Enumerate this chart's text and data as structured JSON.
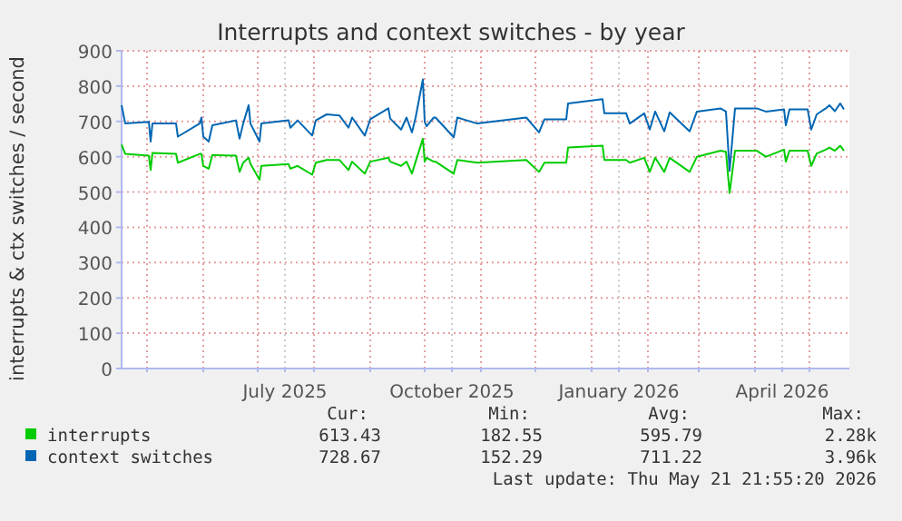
{
  "chart_data": {
    "type": "line",
    "title": "Interrupts and context switches - by year",
    "ylabel": "interrupts & ctx switches / second",
    "x": [
      "2025-04-17",
      "2025-04-19",
      "2025-05-02",
      "2025-05-03",
      "2025-05-04",
      "2025-05-17",
      "2025-05-18",
      "2025-05-30",
      "2025-05-31",
      "2025-06-01",
      "2025-06-04",
      "2025-06-06",
      "2025-06-19",
      "2025-06-21",
      "2025-06-23",
      "2025-06-26",
      "2025-06-27",
      "2025-07-02",
      "2025-07-03",
      "2025-07-18",
      "2025-07-19",
      "2025-07-23",
      "2025-07-31",
      "2025-08-02",
      "2025-08-08",
      "2025-08-15",
      "2025-08-20",
      "2025-08-22",
      "2025-08-29",
      "2025-09-01",
      "2025-09-11",
      "2025-09-12",
      "2025-09-18",
      "2025-09-21",
      "2025-09-24",
      "2025-09-26",
      "2025-09-30",
      "2025-10-01",
      "2025-10-02",
      "2025-10-06",
      "2025-10-07",
      "2025-10-17",
      "2025-10-19",
      "2025-10-30",
      "2025-11-26",
      "2025-12-03",
      "2025-12-06",
      "2025-12-18",
      "2025-12-19",
      "2026-01-07",
      "2026-01-08",
      "2026-01-20",
      "2026-01-22",
      "2026-01-30",
      "2026-02-02",
      "2026-02-05",
      "2026-02-10",
      "2026-02-13",
      "2026-02-24",
      "2026-02-28",
      "2026-03-13",
      "2026-03-16",
      "2026-03-18",
      "2026-03-21",
      "2026-04-02",
      "2026-04-07",
      "2026-04-17",
      "2026-04-18",
      "2026-04-20",
      "2026-04-30",
      "2026-05-02",
      "2026-05-05",
      "2026-05-10",
      "2026-05-12",
      "2026-05-15",
      "2026-05-18",
      "2026-05-20"
    ],
    "series": [
      {
        "name": "interrupts",
        "color": "#00cc00",
        "values": [
          634,
          608,
          603,
          562,
          611,
          608,
          583,
          608,
          608,
          574,
          566,
          605,
          603,
          557,
          583,
          597,
          580,
          535,
          574,
          579,
          566,
          574,
          549,
          583,
          591,
          591,
          562,
          586,
          552,
          586,
          597,
          586,
          574,
          586,
          552,
          586,
          651,
          586,
          597,
          586,
          586,
          552,
          591,
          583,
          591,
          557,
          583,
          583,
          626,
          631,
          591,
          591,
          583,
          597,
          557,
          597,
          557,
          597,
          557,
          600,
          617,
          614,
          497,
          617,
          617,
          600,
          620,
          586,
          617,
          617,
          574,
          609,
          620,
          626,
          617,
          631,
          617
        ]
      },
      {
        "name": "context switches",
        "color": "#0066b3",
        "values": [
          746,
          694,
          699,
          643,
          694,
          694,
          657,
          694,
          711,
          657,
          643,
          689,
          703,
          651,
          694,
          746,
          694,
          643,
          694,
          703,
          682,
          703,
          660,
          703,
          720,
          717,
          682,
          711,
          660,
          706,
          737,
          708,
          677,
          711,
          669,
          711,
          819,
          700,
          686,
          711,
          711,
          655,
          711,
          694,
          711,
          669,
          706,
          706,
          751,
          763,
          723,
          723,
          694,
          723,
          677,
          728,
          672,
          726,
          672,
          728,
          737,
          728,
          560,
          737,
          737,
          728,
          734,
          689,
          734,
          734,
          677,
          720,
          737,
          746,
          729,
          751,
          734
        ]
      }
    ],
    "xlim": [
      "2025-04-17",
      "2026-05-23"
    ],
    "xticks": [
      {
        "value": "2025-05-01",
        "label": null
      },
      {
        "value": "2025-06-01",
        "label": null
      },
      {
        "value": "2025-07-01",
        "label": null
      },
      {
        "value": "2025-07-16",
        "label": "July 2025"
      },
      {
        "value": "2025-08-01",
        "label": null
      },
      {
        "value": "2025-09-01",
        "label": null
      },
      {
        "value": "2025-10-01",
        "label": null
      },
      {
        "value": "2025-10-16",
        "label": "October 2025"
      },
      {
        "value": "2025-11-01",
        "label": null
      },
      {
        "value": "2025-12-01",
        "label": null
      },
      {
        "value": "2026-01-01",
        "label": null
      },
      {
        "value": "2026-01-16",
        "label": "January 2026"
      },
      {
        "value": "2026-02-01",
        "label": null
      },
      {
        "value": "2026-03-01",
        "label": null
      },
      {
        "value": "2026-04-01",
        "label": null
      },
      {
        "value": "2026-04-16",
        "label": "April 2026"
      },
      {
        "value": "2026-05-01",
        "label": null
      }
    ],
    "ylim": [
      0,
      900
    ],
    "yticks": [
      0,
      100,
      200,
      300,
      400,
      500,
      600,
      700,
      800,
      900
    ],
    "grid": true,
    "legend": "bottom",
    "marker": "none",
    "line_style": "solid",
    "annotations": [
      "Cur:",
      "Min:",
      "Avg:",
      "Max:",
      "613.43",
      "182.55",
      "595.79",
      "2.28k",
      "728.67",
      "152.29",
      "711.22",
      "3.96k",
      "Last update: Thu May 21 21:55:20 2026"
    ]
  }
}
